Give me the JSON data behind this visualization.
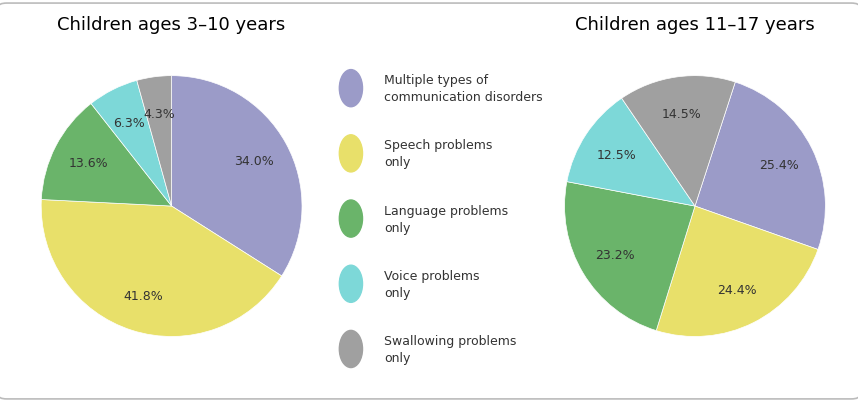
{
  "title1": "Children ages 3–10 years",
  "title2": "Children ages 11–17 years",
  "slices1": [
    34.0,
    41.8,
    13.6,
    6.3,
    4.3
  ],
  "slices2": [
    25.4,
    24.4,
    23.2,
    12.5,
    14.5
  ],
  "labels1": [
    "34.0%",
    "41.8%",
    "13.6%",
    "6.3%",
    "4.3%"
  ],
  "labels2": [
    "25.4%",
    "24.4%",
    "23.2%",
    "12.5%",
    "14.5%"
  ],
  "colors": [
    "#9b9bc8",
    "#e8e06a",
    "#6ab46a",
    "#7dd8d8",
    "#a0a0a0"
  ],
  "legend_labels": [
    "Multiple types of\ncommunication disorders",
    "Speech problems\nonly",
    "Language problems\nonly",
    "Voice problems\nonly",
    "Swallowing problems\nonly"
  ],
  "legend_colors": [
    "#9b9bc8",
    "#e8e06a",
    "#6ab46a",
    "#7dd8d8",
    "#a0a0a0"
  ],
  "background_color": "#ffffff",
  "title_fontsize": 13,
  "label_fontsize": 9,
  "legend_fontsize": 9,
  "startangle1": 90,
  "startangle2": 72
}
